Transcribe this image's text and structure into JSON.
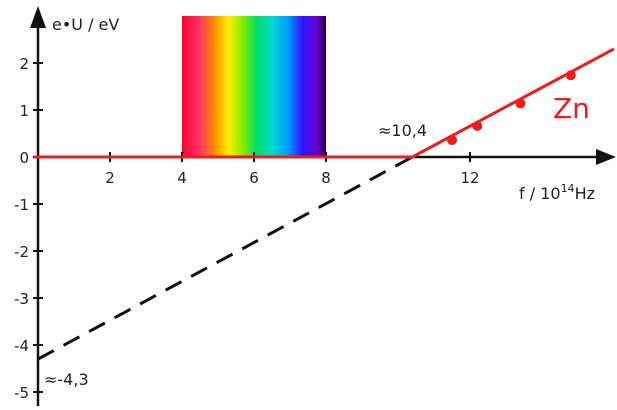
{
  "chart_data": {
    "type": "line",
    "xlabel": "f / 10",
    "xlabel_sup": "14",
    "xlabel_unit": "Hz",
    "ylabel": "e•U / eV",
    "x_ticks": [
      2,
      4,
      6,
      8,
      12
    ],
    "y_ticks": [
      2,
      1,
      0,
      -1,
      -2,
      -3,
      -4,
      -5
    ],
    "xlim": [
      0,
      16.2
    ],
    "ylim": [
      -5.2,
      2.9
    ],
    "grid": false,
    "series": [
      {
        "name": "Zn",
        "color": "#ee1c1c",
        "points": [
          [
            11.5,
            0.36
          ],
          [
            12.2,
            0.66
          ],
          [
            13.4,
            1.14
          ],
          [
            14.8,
            1.74
          ]
        ],
        "fit_line": [
          [
            10.4,
            0.0
          ],
          [
            16.0,
            2.3
          ]
        ]
      }
    ],
    "zero_line": {
      "x": [
        0,
        10.4
      ],
      "y": 0,
      "color": "#ee1c1c"
    },
    "extrapolation": {
      "x": [
        0,
        10.4
      ],
      "y": [
        -4.3,
        0
      ],
      "style": "dashed",
      "color": "#111111"
    },
    "spectrum_band": {
      "x_range": [
        4,
        8
      ],
      "y_range": [
        0,
        3.0
      ]
    },
    "annotations": [
      {
        "text": "≈10,4",
        "x": 10.4,
        "y": 0
      },
      {
        "text": "≈-4,3",
        "x": 0,
        "y": -4.3
      }
    ]
  }
}
